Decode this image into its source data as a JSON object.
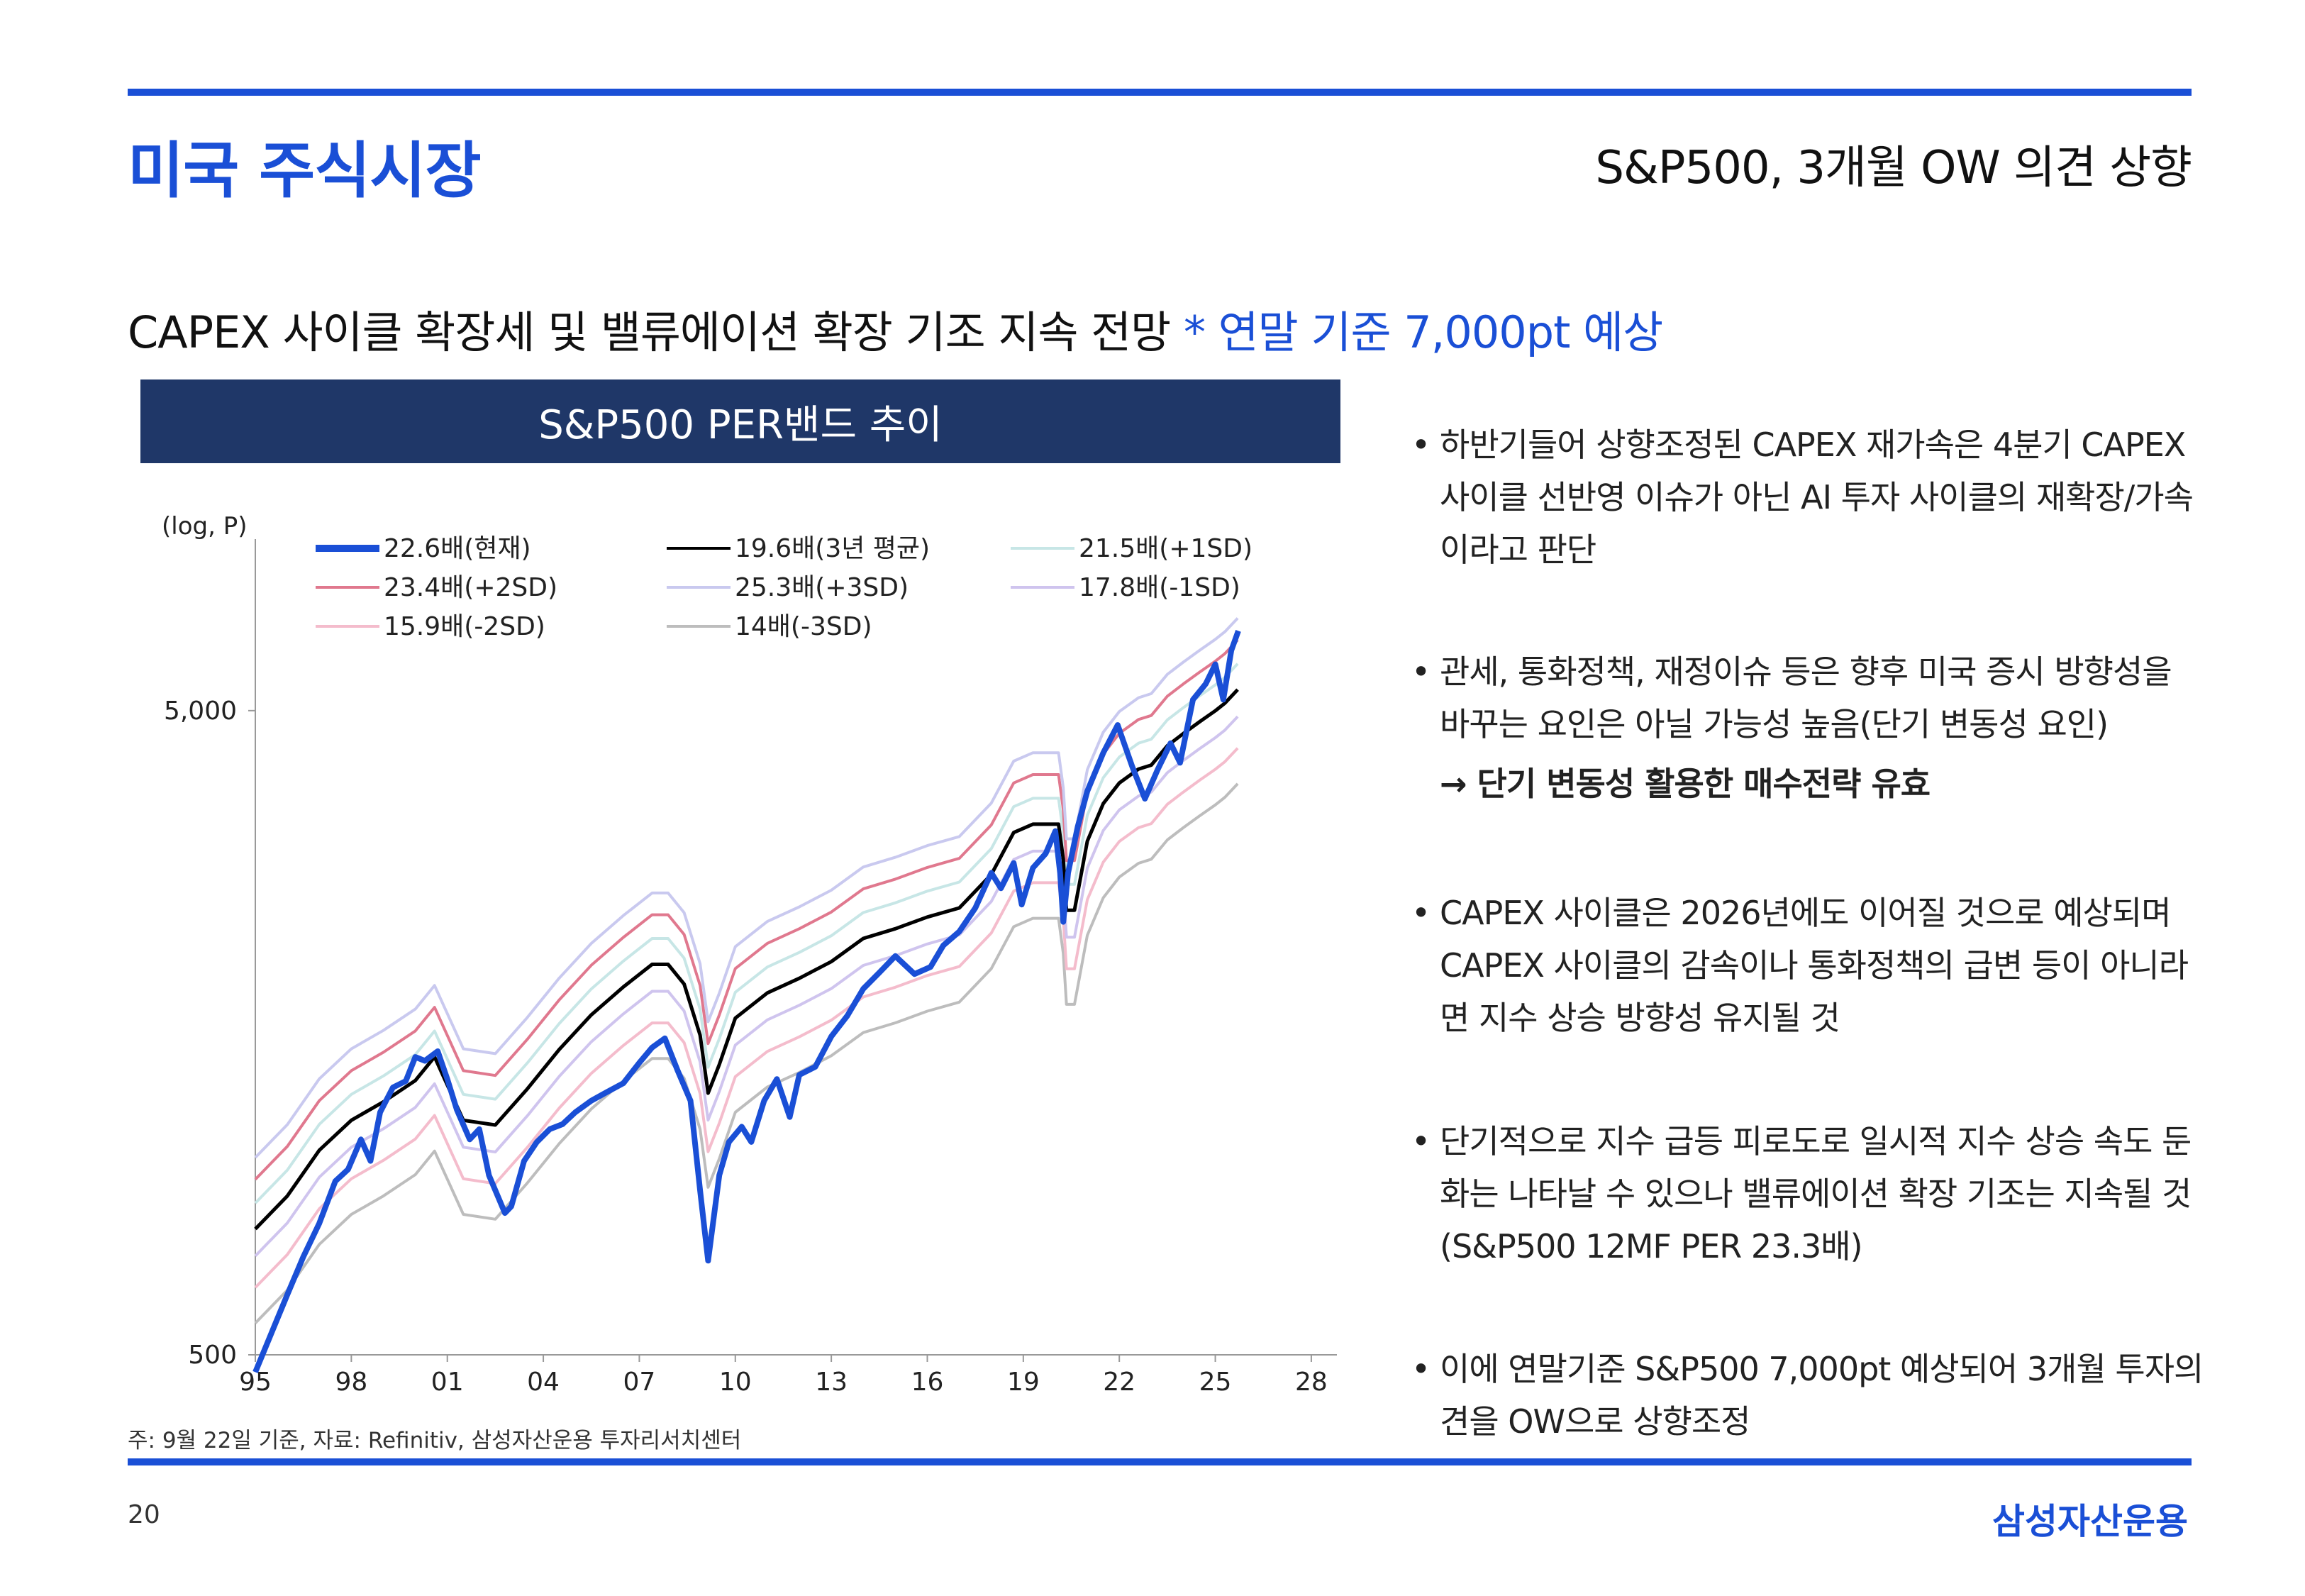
{
  "header": {
    "section_title": "미국 주식시장",
    "right_title": "S&P500, 3개월 OW 의견 상향"
  },
  "headline": {
    "main": "CAPEX 사이클 확장세 및 밸류에이션 확장 기조 지속 전망",
    "accent": "* 연말 기준 7,000pt 예상"
  },
  "chart_banner": "S&P500 PER밴드 추이",
  "chart_data": {
    "type": "line",
    "ylabel": "(log, P)",
    "y_scale": "log",
    "ylim": [
      500,
      9000
    ],
    "yticks": [
      500,
      5000
    ],
    "ytick_labels": [
      "500",
      "5,000"
    ],
    "xlim": [
      1995,
      2028.8
    ],
    "xticks": [
      1995,
      1998,
      2001,
      2004,
      2007,
      2010,
      2013,
      2016,
      2019,
      2022,
      2025,
      2028
    ],
    "xtick_labels": [
      "95",
      "98",
      "01",
      "04",
      "07",
      "10",
      "13",
      "16",
      "19",
      "22",
      "25",
      "28"
    ],
    "legend_position": "top",
    "eps_basis": {
      "x": [
        1995.0,
        1996.0,
        1997.0,
        1998.0,
        1999.0,
        2000.0,
        2000.6,
        2001.5,
        2002.5,
        2003.5,
        2004.5,
        2005.5,
        2006.5,
        2007.4,
        2007.9,
        2008.4,
        2008.9,
        2009.15,
        2009.5,
        2010.0,
        2011.0,
        2012.0,
        2013.0,
        2014.0,
        2015.0,
        2016.0,
        2017.0,
        2018.0,
        2018.7,
        2019.3,
        2019.9,
        2020.1,
        2020.25,
        2020.35,
        2020.6,
        2021.0,
        2021.5,
        2022.0,
        2022.6,
        2023.0,
        2023.5,
        2024.0,
        2024.5,
        2025.0,
        2025.3,
        2025.7
      ],
      "y": [
        40,
        45,
        53,
        59,
        63,
        68,
        74,
        59,
        58,
        66,
        76,
        86,
        95,
        103,
        103,
        96,
        80,
        65,
        72,
        85,
        93,
        98,
        104,
        113,
        117,
        122,
        126,
        142,
        165,
        170,
        170,
        170,
        150,
        125,
        125,
        160,
        183,
        197,
        207,
        210,
        225,
        235,
        245,
        255,
        262,
        275
      ]
    },
    "series": [
      {
        "name": "22.6배(현재)",
        "color": "#1a4fd6",
        "multiple": null,
        "x": [
          1995.0,
          1995.5,
          1996.0,
          1996.5,
          1997.0,
          1997.5,
          1997.9,
          1998.3,
          1998.6,
          1998.9,
          1999.3,
          1999.7,
          2000.0,
          2000.3,
          2000.7,
          2001.0,
          2001.3,
          2001.7,
          2002.0,
          2002.3,
          2002.8,
          2003.0,
          2003.4,
          2003.8,
          2004.2,
          2004.6,
          2005.0,
          2005.5,
          2006.0,
          2006.5,
          2007.0,
          2007.4,
          2007.8,
          2008.2,
          2008.6,
          2008.9,
          2009.15,
          2009.5,
          2009.8,
          2010.2,
          2010.5,
          2010.9,
          2011.3,
          2011.7,
          2012.0,
          2012.5,
          2013.0,
          2013.5,
          2014.0,
          2014.5,
          2015.0,
          2015.6,
          2016.1,
          2016.5,
          2017.0,
          2017.5,
          2018.0,
          2018.3,
          2018.7,
          2018.95,
          2019.3,
          2019.7,
          2020.0,
          2020.15,
          2020.25,
          2020.4,
          2020.7,
          2021.0,
          2021.5,
          2021.95,
          2022.4,
          2022.8,
          2023.2,
          2023.6,
          2023.9,
          2024.3,
          2024.7,
          2025.0,
          2025.25,
          2025.5,
          2025.72
        ],
        "y": [
          470,
          540,
          620,
          710,
          800,
          930,
          970,
          1080,
          1000,
          1190,
          1300,
          1330,
          1450,
          1430,
          1480,
          1340,
          1200,
          1080,
          1120,
          950,
          830,
          850,
          1000,
          1070,
          1120,
          1140,
          1190,
          1240,
          1280,
          1320,
          1420,
          1500,
          1550,
          1380,
          1240,
          900,
          700,
          950,
          1070,
          1130,
          1070,
          1240,
          1340,
          1170,
          1360,
          1400,
          1560,
          1680,
          1850,
          1960,
          2080,
          1950,
          2000,
          2160,
          2270,
          2470,
          2800,
          2650,
          2900,
          2500,
          2850,
          3000,
          3250,
          2800,
          2350,
          2800,
          3300,
          3750,
          4300,
          4750,
          4100,
          3650,
          4050,
          4450,
          4150,
          5200,
          5500,
          5900,
          5200,
          6200,
          6650
        ]
      },
      {
        "name": "19.6배(3년 평균)",
        "color": "#000000",
        "multiple": 19.6
      },
      {
        "name": "21.5배(+1SD)",
        "color": "#c7e6e6",
        "multiple": 21.5
      },
      {
        "name": "23.4배(+2SD)",
        "color": "#e0788e",
        "multiple": 23.4
      },
      {
        "name": "25.3배(+3SD)",
        "color": "#c9c9ef",
        "multiple": 25.3
      },
      {
        "name": "17.8배(-1SD)",
        "color": "#cfc4ee",
        "multiple": 17.8
      },
      {
        "name": "15.9배(-2SD)",
        "color": "#f4bccc",
        "multiple": 15.9
      },
      {
        "name": "14배(-3SD)",
        "color": "#bdbdbd",
        "multiple": 14.0
      }
    ]
  },
  "footnote": "주: 9월 22일 기준, 자료: Refinitiv, 삼성자산운용 투자리서치센터",
  "page_number": "20",
  "brand": "삼성자산운용",
  "bullets": [
    {
      "text": "하반기들어 상향조정된 CAPEX 재가속은 4분기 CAPEX 사이클 선반영 이슈가 아닌 AI 투자 사이클의 재확장/가속이라고 판단"
    },
    {
      "text": "관세, 통화정책, 재정이슈 등은 향후 미국 증시 방향성을 바꾸는 요인은 아닐 가능성 높음(단기 변동성 요인)",
      "emphasis": "→ 단기 변동성 활용한 매수전략 유효"
    },
    {
      "text": "CAPEX 사이클은 2026년에도 이어질 것으로 예상되며 CAPEX 사이클의 감속이나 통화정책의 급변 등이 아니라면 지수 상승 방향성 유지될 것"
    },
    {
      "text": "단기적으로 지수 급등 피로도로 일시적 지수 상승 속도 둔화는 나타날 수 있으나 밸류에이션 확장 기조는 지속될 것(S&P500 12MF PER 23.3배)"
    },
    {
      "text": "이에 연말기준 S&P500 7,000pt 예상되어 3개월 투자의견을 OW으로 상향조정"
    }
  ],
  "colors": {
    "accent": "#1a4fd6",
    "banner_bg": "#1f3768"
  }
}
